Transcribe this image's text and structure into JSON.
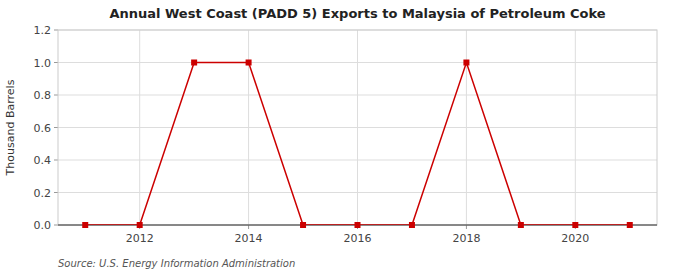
{
  "chart_data": {
    "type": "line",
    "title": "Annual West Coast (PADD 5) Exports to Malaysia of Petroleum Coke",
    "ylabel": "Thousand Barrels",
    "annotations": [
      "Source: U.S. Energy Information Administration"
    ],
    "x": [
      2011,
      2012,
      2013,
      2014,
      2015,
      2016,
      2017,
      2018,
      2019,
      2020,
      2021
    ],
    "values": [
      0,
      0,
      1,
      1,
      0,
      0,
      0,
      1,
      0,
      0,
      0
    ],
    "color": "#cc0000",
    "marker": "square",
    "line_style": "solid",
    "xlim": [
      2010.5,
      2021.5
    ],
    "xticks": [
      2012,
      2014,
      2016,
      2018,
      2020
    ],
    "ylim": [
      0,
      1.2
    ],
    "yticks": [
      {
        "value": 0.0,
        "label": "0.0"
      },
      0.2,
      0.4,
      0.6,
      0.8,
      {
        "value": 1.0,
        "label": "1.0"
      },
      1.2
    ],
    "grid": true
  }
}
